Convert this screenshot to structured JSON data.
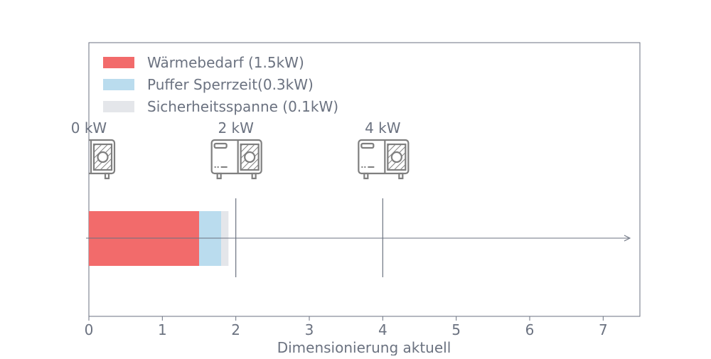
{
  "colors": {
    "text": "#6b7280",
    "axis": "#6b7280",
    "waermebedarf": "#f26b6b",
    "puffer": "#badcee",
    "sicherheit": "#e4e6ea",
    "icon": "#7f7f7f"
  },
  "chart_data": {
    "type": "bar",
    "orientation": "horizontal-stacked",
    "xlabel": "Dimensionierung aktuell",
    "xlim": [
      0,
      7.5
    ],
    "xticks": [
      0,
      1,
      2,
      3,
      4,
      5,
      6,
      7
    ],
    "grid": false,
    "legend_position": "top-left",
    "series": [
      {
        "name": "Wärmebedarf (1.5kW)",
        "value": 1.5,
        "color": "#f26b6b"
      },
      {
        "name": "Puffer Sperrzeit(0.3kW)",
        "value": 0.3,
        "color": "#badcee"
      },
      {
        "name": "Sicherheitsspanne (0.1kW)",
        "value": 0.1,
        "color": "#e4e6ea"
      }
    ],
    "heat_pump_markers": [
      {
        "label": "0 kW",
        "x": 0,
        "icon": "heat-pump-icon",
        "line": false
      },
      {
        "label": "2 kW",
        "x": 2,
        "icon": "heat-pump-icon",
        "line": true
      },
      {
        "label": "4 kW",
        "x": 4,
        "icon": "heat-pump-icon",
        "line": true
      }
    ]
  }
}
